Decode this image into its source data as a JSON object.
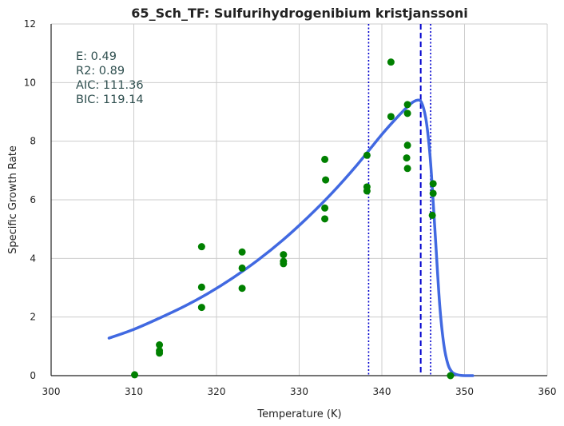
{
  "chart_data": {
    "type": "scatter",
    "title": "65_Sch_TF: Sulfurihydrogenibium kristjanssoni",
    "xlabel": "Temperature (K)",
    "ylabel": "Specific Growth Rate",
    "xlim": [
      300,
      360
    ],
    "ylim": [
      0,
      12
    ],
    "x_ticks": [
      300,
      310,
      320,
      330,
      340,
      350,
      360
    ],
    "y_ticks": [
      0,
      2,
      4,
      6,
      8,
      10,
      12
    ],
    "grid": true,
    "stats": [
      "E:  0.49",
      "R2:  0.89",
      "AIC: 111.36",
      "BIC: 119.14"
    ],
    "colors": {
      "points": "#008000",
      "fit": "#4169e1",
      "vlines": "#0000cd",
      "grid": "#cccccc"
    },
    "points": [
      {
        "x": 310.1,
        "y": 0.03
      },
      {
        "x": 313.1,
        "y": 1.05
      },
      {
        "x": 313.1,
        "y": 0.85
      },
      {
        "x": 313.1,
        "y": 0.77
      },
      {
        "x": 318.2,
        "y": 4.4
      },
      {
        "x": 318.2,
        "y": 3.02
      },
      {
        "x": 318.2,
        "y": 2.33
      },
      {
        "x": 323.1,
        "y": 4.22
      },
      {
        "x": 323.1,
        "y": 3.67
      },
      {
        "x": 323.1,
        "y": 2.98
      },
      {
        "x": 328.1,
        "y": 4.13
      },
      {
        "x": 328.1,
        "y": 3.9
      },
      {
        "x": 328.1,
        "y": 3.82
      },
      {
        "x": 333.1,
        "y": 7.38
      },
      {
        "x": 333.2,
        "y": 6.68
      },
      {
        "x": 333.1,
        "y": 5.72
      },
      {
        "x": 333.1,
        "y": 5.35
      },
      {
        "x": 338.2,
        "y": 7.52
      },
      {
        "x": 338.2,
        "y": 6.44
      },
      {
        "x": 338.2,
        "y": 6.3
      },
      {
        "x": 341.1,
        "y": 10.7
      },
      {
        "x": 341.1,
        "y": 8.84
      },
      {
        "x": 343.1,
        "y": 9.25
      },
      {
        "x": 343.1,
        "y": 8.95
      },
      {
        "x": 343.1,
        "y": 7.86
      },
      {
        "x": 343.0,
        "y": 7.43
      },
      {
        "x": 343.1,
        "y": 7.07
      },
      {
        "x": 346.2,
        "y": 6.55
      },
      {
        "x": 346.2,
        "y": 6.22
      },
      {
        "x": 346.1,
        "y": 5.47
      },
      {
        "x": 348.3,
        "y": 0.0
      }
    ],
    "fit_curve": {
      "x": [
        307.0,
        310.0,
        313.0,
        316.0,
        319.0,
        322.0,
        325.0,
        328.0,
        331.0,
        334.0,
        337.0,
        340.0,
        342.0,
        343.5,
        344.3,
        344.8,
        345.3,
        345.7,
        346.0,
        346.5,
        347.0,
        347.5,
        348.0,
        348.5,
        349.0,
        349.5,
        350.0,
        351.0
      ],
      "y": [
        1.28,
        1.58,
        1.95,
        2.35,
        2.81,
        3.34,
        3.94,
        4.62,
        5.39,
        6.24,
        7.19,
        8.23,
        8.86,
        9.28,
        9.4,
        9.32,
        8.8,
        7.9,
        6.85,
        4.6,
        2.4,
        1.05,
        0.38,
        0.12,
        0.04,
        0.01,
        0.0,
        0.0
      ]
    },
    "vlines": [
      {
        "x": 338.4,
        "style": "dotted"
      },
      {
        "x": 344.7,
        "style": "dashed"
      },
      {
        "x": 345.9,
        "style": "dotted"
      }
    ]
  }
}
